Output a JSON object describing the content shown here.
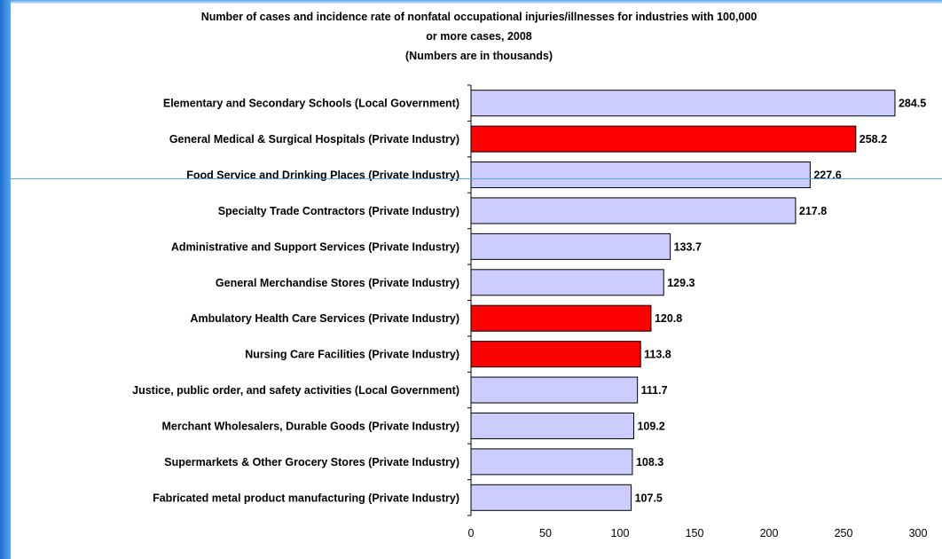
{
  "colors": {
    "frame_blue": "#2a78d8",
    "bar_default": "#ccccff",
    "bar_highlight": "#ff0000",
    "bar_border": "#000000"
  },
  "chart_data": {
    "type": "bar",
    "orientation": "horizontal",
    "title_lines": [
      "Number of cases and incidence rate of nonfatal occupational injuries/illnesses for industries with 100,000",
      "or more cases,  2008",
      "(Numbers are in thousands)"
    ],
    "categories": [
      "Elementary and Secondary Schools (Local Government)",
      "General Medical & Surgical Hospitals (Private Industry)",
      "Food Service and Drinking Places (Private Industry)",
      "Specialty Trade Contractors (Private Industry)",
      "Administrative and Support Services (Private Industry)",
      "General Merchandise Stores (Private Industry)",
      "Ambulatory Health Care Services (Private Industry)",
      "Nursing Care Facilities (Private Industry)",
      "Justice, public order, and safety activities (Local Government)",
      "Merchant Wholesalers, Durable Goods (Private Industry)",
      "Supermarkets & Other Grocery Stores (Private Industry)",
      "Fabricated metal product manufacturing (Private Industry)"
    ],
    "values": [
      284.5,
      258.2,
      227.6,
      217.8,
      133.7,
      129.3,
      120.8,
      113.8,
      111.7,
      109.2,
      108.3,
      107.5
    ],
    "value_labels": [
      "284.5",
      "258.2",
      "227.6",
      "217.8",
      "133.7",
      "129.3",
      "120.8",
      "113.8",
      "111.7",
      "109.2",
      "108.3",
      "107.5"
    ],
    "highlighted": [
      false,
      true,
      false,
      false,
      false,
      false,
      true,
      true,
      false,
      false,
      false,
      false
    ],
    "xlim": [
      0,
      300
    ],
    "xticks": [
      0,
      50,
      100,
      150,
      200,
      250,
      300
    ],
    "xlabel": "",
    "ylabel": "",
    "grid": false,
    "legend": "none"
  }
}
